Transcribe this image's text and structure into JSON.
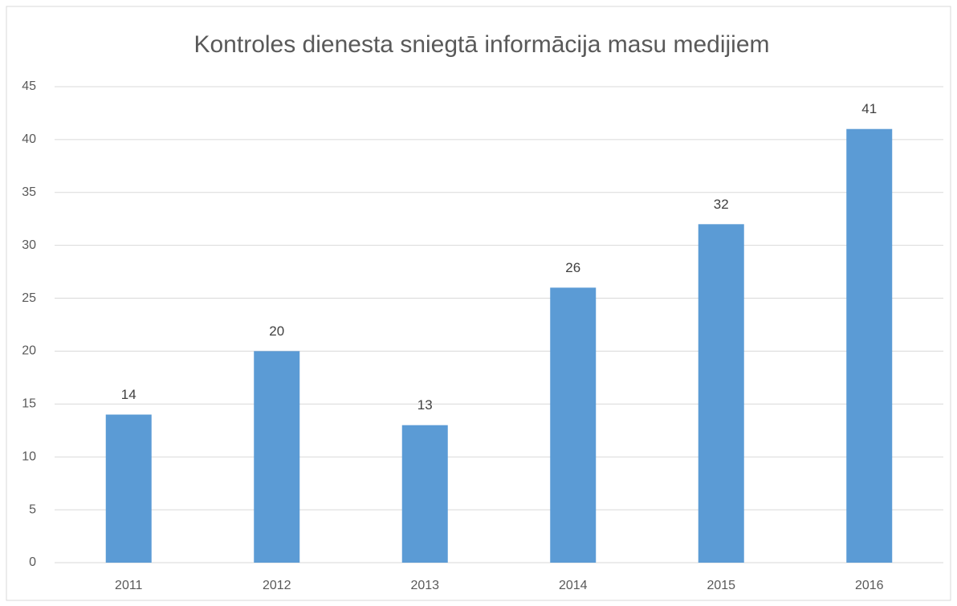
{
  "chart_data": {
    "type": "bar",
    "title": "Kontroles dienesta sniegtā informācija masu medijiem",
    "categories": [
      "2011",
      "2012",
      "2013",
      "2014",
      "2015",
      "2016"
    ],
    "values": [
      14,
      20,
      13,
      26,
      32,
      41
    ],
    "color": "#5b9bd5",
    "ylim": [
      0,
      45
    ],
    "yticks": [
      0,
      5,
      10,
      15,
      20,
      25,
      30,
      35,
      40,
      45
    ],
    "grid": true,
    "data_labels": true
  }
}
